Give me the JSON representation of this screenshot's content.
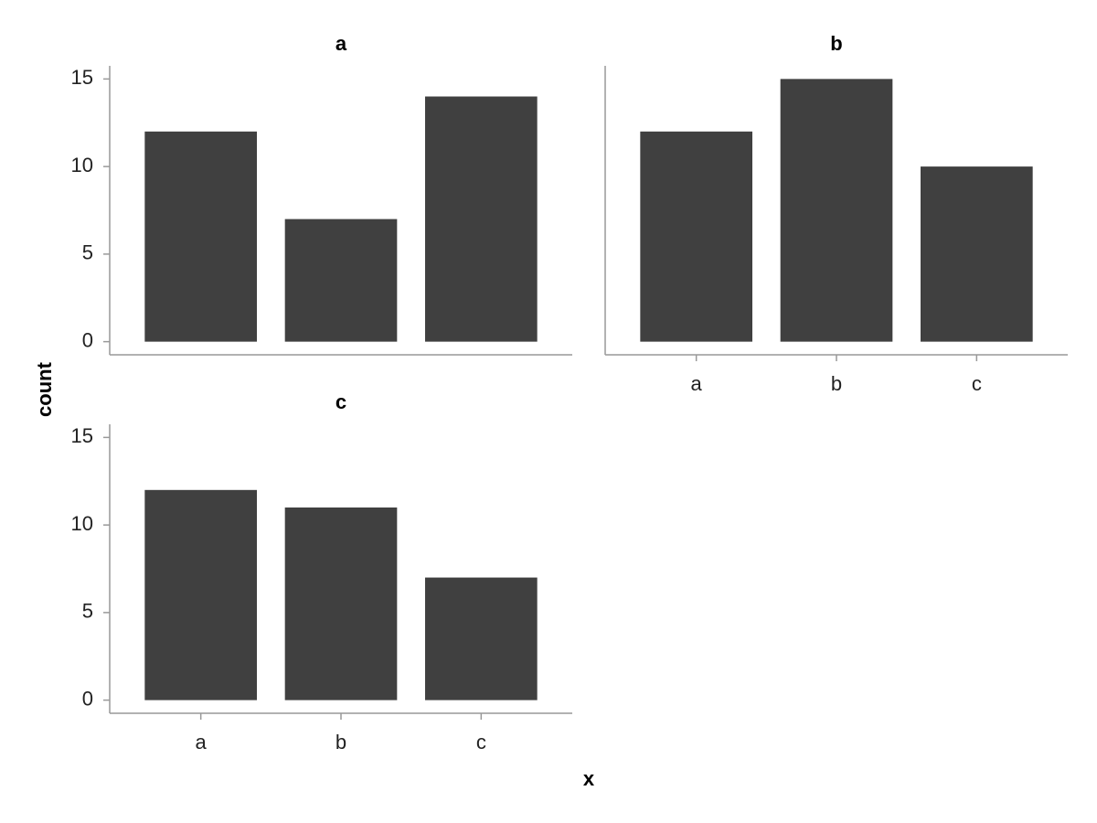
{
  "xlabel": "x",
  "ylabel": "count",
  "chart_data": [
    {
      "type": "bar",
      "title": "a",
      "categories": [
        null,
        null,
        null
      ],
      "values": [
        12,
        7,
        14
      ],
      "color": "#404040",
      "ylim": [
        -0.75,
        15.75
      ],
      "yticks": [
        0,
        5,
        10,
        15
      ]
    },
    {
      "type": "bar",
      "title": "b",
      "categories": [
        "a",
        "b",
        "c"
      ],
      "values": [
        12,
        15,
        10
      ],
      "color": "#404040",
      "ylim": [
        -0.75,
        15.75
      ]
    },
    {
      "type": "bar",
      "title": "c",
      "categories": [
        "a",
        "b",
        "c"
      ],
      "values": [
        12,
        11,
        7
      ],
      "color": "#404040",
      "ylim": [
        -0.75,
        15.75
      ],
      "yticks": [
        0,
        5,
        10,
        15
      ]
    }
  ]
}
